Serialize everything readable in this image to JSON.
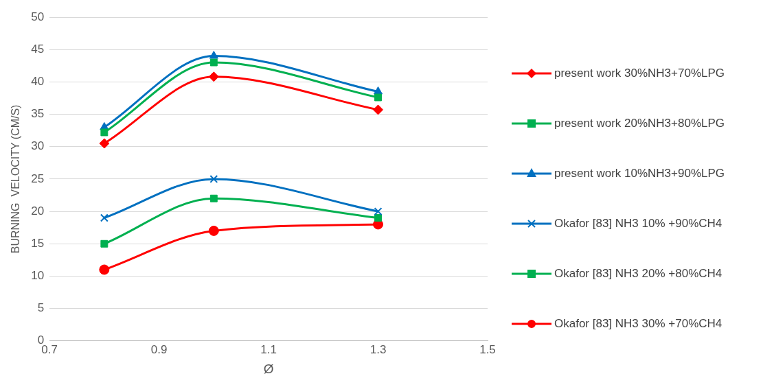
{
  "chart_data": {
    "type": "line",
    "xlabel": "Ø",
    "ylabel": "BURNING  VELOCITY (CM/S)",
    "x": [
      0.8,
      1.0,
      1.3
    ],
    "xlim": [
      0.7,
      1.5
    ],
    "xticks": [
      0.7,
      0.9,
      1.1,
      1.3,
      1.5
    ],
    "ylim": [
      0,
      50
    ],
    "yticks": [
      0,
      5,
      10,
      15,
      20,
      25,
      30,
      35,
      40,
      45,
      50
    ],
    "grid": "y",
    "legend": "right",
    "series": [
      {
        "name": "present work 30%NH3+70%LPG",
        "color": "#ff0000",
        "marker": "diamond",
        "values": [
          30.5,
          40.8,
          35.7
        ]
      },
      {
        "name": "present work 20%NH3+80%LPG",
        "color": "#00b050",
        "marker": "square",
        "values": [
          32.2,
          43,
          37.6
        ]
      },
      {
        "name": "present work 10%NH3+90%LPG",
        "color": "#0070c0",
        "marker": "triangle",
        "values": [
          33,
          44,
          38.5
        ]
      },
      {
        "name": "Okafor [83] NH3 10% +90%CH4",
        "color": "#0070c0",
        "marker": "cross",
        "values": [
          19,
          25,
          20
        ]
      },
      {
        "name": "Okafor [83] NH3 20% +80%CH4",
        "color": "#00b050",
        "marker": "square",
        "values": [
          15,
          22,
          19
        ]
      },
      {
        "name": "Okafor [83] NH3 30% +70%CH4",
        "color": "#ff0000",
        "marker": "circle",
        "values": [
          11,
          17,
          18
        ]
      }
    ]
  }
}
